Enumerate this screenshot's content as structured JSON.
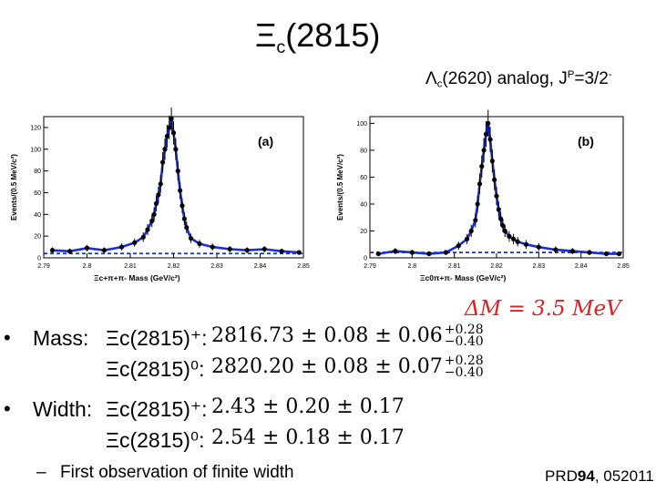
{
  "title": {
    "symbol": "Ξ",
    "subscript": "c",
    "mass": "(2815)"
  },
  "subtitle": {
    "symbol": "Λ",
    "subscript": "c",
    "text": "(2620) analog, J",
    "sup": "P",
    "text2": "=3/2",
    "sup2": "-"
  },
  "chart_data": [
    {
      "type": "scatter",
      "panel_label": "(a)",
      "xlabel": "Ξc+π+π- Mass (GeV/c²)",
      "ylabel": "Events/(0.5 MeV/c²)",
      "xlim": [
        2.79,
        2.85
      ],
      "ylim": [
        0,
        130
      ],
      "x_ticks": [
        "2.79",
        "2.8",
        "2.81",
        "2.82",
        "2.83",
        "2.84",
        "2.85"
      ],
      "y_ticks": [
        "0",
        "20",
        "40",
        "60",
        "80",
        "100",
        "120"
      ],
      "series": [
        {
          "x": [
            2.792,
            2.796,
            2.8,
            2.804,
            2.808,
            2.811,
            2.813,
            2.814,
            2.815,
            2.8155,
            2.816,
            2.8165,
            2.817,
            2.8175,
            2.818,
            2.8185,
            2.819,
            2.8195,
            2.82,
            2.8205,
            2.821,
            2.8215,
            2.822,
            2.8225,
            2.823,
            2.824,
            2.826,
            2.829,
            2.833,
            2.837,
            2.841,
            2.845,
            2.849
          ],
          "y": [
            7,
            6,
            9,
            7,
            10,
            14,
            19,
            26,
            34,
            40,
            50,
            58,
            68,
            88,
            100,
            112,
            120,
            128,
            115,
            100,
            80,
            62,
            48,
            36,
            28,
            18,
            13,
            10,
            8,
            7,
            8,
            6,
            5
          ]
        }
      ]
    },
    {
      "type": "scatter",
      "panel_label": "(b)",
      "xlabel": "Ξc0π+π- Mass (GeV/c²)",
      "ylabel": "Events/(0.5 MeV/c²)",
      "xlim": [
        2.79,
        2.85
      ],
      "ylim": [
        0,
        105
      ],
      "x_ticks": [
        "2.79",
        "2.8",
        "2.81",
        "2.82",
        "2.83",
        "2.84",
        "2.85"
      ],
      "y_ticks": [
        "0",
        "20",
        "40",
        "60",
        "80",
        "100"
      ],
      "series": [
        {
          "x": [
            2.792,
            2.796,
            2.8,
            2.804,
            2.808,
            2.811,
            2.813,
            2.814,
            2.815,
            2.8155,
            2.816,
            2.8165,
            2.817,
            2.8175,
            2.818,
            2.8185,
            2.819,
            2.8195,
            2.82,
            2.8205,
            2.821,
            2.8215,
            2.822,
            2.823,
            2.824,
            2.825,
            2.827,
            2.83,
            2.834,
            2.838,
            2.842,
            2.846,
            2.849
          ],
          "y": [
            3,
            5,
            4,
            3,
            4,
            9,
            14,
            20,
            28,
            40,
            55,
            68,
            80,
            92,
            100,
            88,
            72,
            58,
            46,
            36,
            29,
            24,
            20,
            16,
            14,
            12,
            10,
            8,
            6,
            5,
            4,
            3,
            3
          ]
        }
      ]
    }
  ],
  "delta_m": "ΔM = 3.5 MeV",
  "bullets": {
    "mass_label": "Mass:",
    "mass_plus_name": "Ξc(2815)⁺:",
    "mass_plus_value": "2816.73 ± 0.08 ± 0.06",
    "mass_plus_sup": "+0.28",
    "mass_plus_sub": "−0.40",
    "mass_zero_name": "Ξc(2815)⁰:",
    "mass_zero_value": "2820.20 ± 0.08 ± 0.07",
    "mass_zero_sup": "+0.28",
    "mass_zero_sub": "−0.40",
    "width_label": "Width:",
    "width_plus_name": "Ξc(2815)⁺:",
    "width_plus_value": "2.43 ± 0.20 ± 0.17",
    "width_zero_name": "Ξc(2815)⁰:",
    "width_zero_value": "2.54 ± 0.18 ± 0.17",
    "note": "First observation of finite width"
  },
  "reference": {
    "journal": "PRD",
    "volume": "94",
    "page": ", 052011"
  }
}
